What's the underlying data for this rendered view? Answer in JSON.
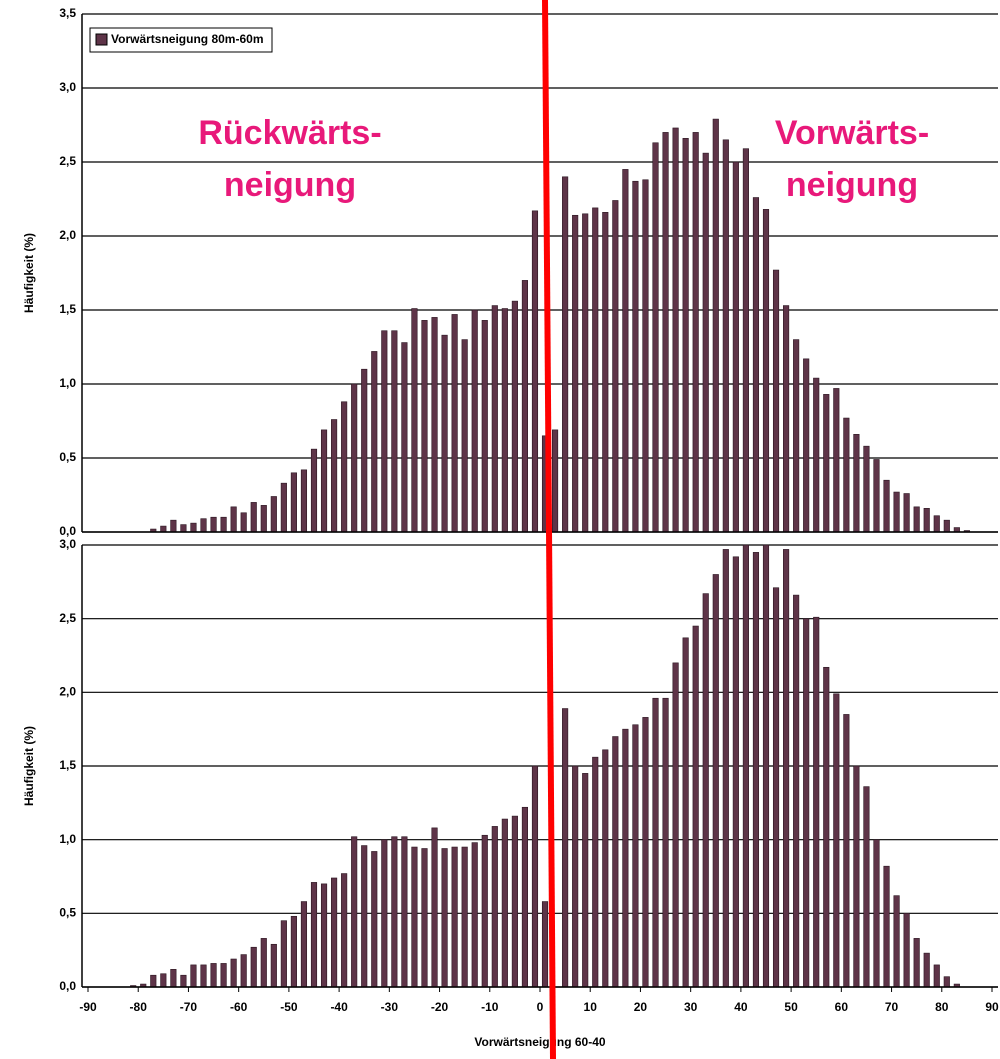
{
  "chart_data": [
    {
      "type": "bar",
      "y_label": "Häufigkeit (%)",
      "annotations": [
        "Rückwärts-",
        "neigung",
        "Vorwärts-",
        "neigung"
      ],
      "legend": "top-left",
      "grid": true,
      "xlim": [
        -90,
        90
      ],
      "ylim": [
        0,
        3.5
      ],
      "yticks": [
        {
          "value": 0,
          "label": "0,0"
        },
        {
          "value": 0.5,
          "label": "0,5"
        },
        {
          "value": 1,
          "label": "1,0"
        },
        {
          "value": 1.5,
          "label": "1,5"
        },
        {
          "value": 2,
          "label": "2,0"
        },
        {
          "value": 2.5,
          "label": "2,5"
        },
        {
          "value": 3,
          "label": "3,0"
        },
        {
          "value": 3.5,
          "label": "3,5"
        }
      ],
      "x": [
        -77,
        -75,
        -73,
        -71,
        -69,
        -67,
        -65,
        -63,
        -61,
        -59,
        -57,
        -55,
        -53,
        -51,
        -49,
        -47,
        -45,
        -43,
        -41,
        -39,
        -37,
        -35,
        -33,
        -31,
        -29,
        -27,
        -25,
        -23,
        -21,
        -19,
        -17,
        -15,
        -13,
        -11,
        -9,
        -7,
        -5,
        -3,
        -1,
        1,
        3,
        5,
        7,
        9,
        11,
        13,
        15,
        17,
        19,
        21,
        23,
        25,
        27,
        29,
        31,
        33,
        35,
        37,
        39,
        41,
        43,
        45,
        47,
        49,
        51,
        53,
        55,
        57,
        59,
        61,
        63,
        65,
        67,
        69,
        71,
        73,
        75,
        77,
        79,
        81,
        83,
        85
      ],
      "series": [
        {
          "name": "Vorwärtsneigung 80m-60m",
          "color": "#5e3448",
          "values": [
            0.02,
            0.04,
            0.08,
            0.05,
            0.06,
            0.09,
            0.1,
            0.1,
            0.17,
            0.13,
            0.2,
            0.18,
            0.24,
            0.33,
            0.4,
            0.42,
            0.56,
            0.69,
            0.76,
            0.88,
            1.0,
            1.1,
            1.22,
            1.36,
            1.36,
            1.28,
            1.51,
            1.43,
            1.45,
            1.33,
            1.47,
            1.3,
            1.5,
            1.43,
            1.53,
            1.51,
            1.56,
            1.7,
            2.17,
            0.65,
            0.69,
            2.4,
            2.14,
            2.15,
            2.19,
            2.16,
            2.24,
            2.45,
            2.37,
            2.38,
            2.63,
            2.7,
            2.73,
            2.66,
            2.7,
            2.56,
            2.79,
            2.65,
            2.5,
            2.59,
            2.26,
            2.18,
            1.77,
            1.53,
            1.3,
            1.17,
            1.04,
            0.93,
            0.97,
            0.77,
            0.66,
            0.58,
            0.49,
            0.35,
            0.27,
            0.26,
            0.17,
            0.16,
            0.11,
            0.08,
            0.03,
            0.01
          ]
        }
      ]
    },
    {
      "type": "bar",
      "y_label": "Häufigkeit (%)",
      "x_label": "Vorwärtsneigung 60-40",
      "grid": true,
      "xlim": [
        -90,
        90
      ],
      "ylim": [
        0,
        3
      ],
      "yticks": [
        {
          "value": 0,
          "label": "0,0"
        },
        {
          "value": 0.5,
          "label": "0,5"
        },
        {
          "value": 1,
          "label": "1,0"
        },
        {
          "value": 1.5,
          "label": "1,5"
        },
        {
          "value": 2,
          "label": "2,0"
        },
        {
          "value": 2.5,
          "label": "2,5"
        },
        {
          "value": 3,
          "label": "3,0"
        }
      ],
      "xticks": [
        -90,
        -80,
        -70,
        -60,
        -50,
        -40,
        -30,
        -20,
        -10,
        0,
        10,
        20,
        30,
        40,
        50,
        60,
        70,
        80,
        90
      ],
      "x": [
        -81,
        -79,
        -77,
        -75,
        -73,
        -71,
        -69,
        -67,
        -65,
        -63,
        -61,
        -59,
        -57,
        -55,
        -53,
        -51,
        -49,
        -47,
        -45,
        -43,
        -41,
        -39,
        -37,
        -35,
        -33,
        -31,
        -29,
        -27,
        -25,
        -23,
        -21,
        -19,
        -17,
        -15,
        -13,
        -11,
        -9,
        -7,
        -5,
        -3,
        -1,
        1,
        3,
        5,
        7,
        9,
        11,
        13,
        15,
        17,
        19,
        21,
        23,
        25,
        27,
        29,
        31,
        33,
        35,
        37,
        39,
        41,
        43,
        45,
        47,
        49,
        51,
        53,
        55,
        57,
        59,
        61,
        63,
        65,
        67,
        69,
        71,
        73,
        75,
        77,
        79,
        81,
        83
      ],
      "color": "#5e3448",
      "values": [
        0.01,
        0.02,
        0.08,
        0.09,
        0.12,
        0.08,
        0.15,
        0.15,
        0.16,
        0.16,
        0.19,
        0.22,
        0.27,
        0.33,
        0.29,
        0.45,
        0.48,
        0.58,
        0.71,
        0.7,
        0.74,
        0.77,
        1.02,
        0.96,
        0.92,
        1.0,
        1.02,
        1.02,
        0.95,
        0.94,
        1.08,
        0.94,
        0.95,
        0.95,
        0.98,
        1.03,
        1.09,
        1.14,
        1.16,
        1.22,
        1.5,
        0.58,
        0,
        1.89,
        1.5,
        1.45,
        1.56,
        1.61,
        1.7,
        1.75,
        1.78,
        1.83,
        1.96,
        1.96,
        2.2,
        2.37,
        2.45,
        2.67,
        2.8,
        2.97,
        2.92,
        3.0,
        2.95,
        3.0,
        2.71,
        2.97,
        2.66,
        2.5,
        2.51,
        2.17,
        1.99,
        1.85,
        1.5,
        1.36,
        1.0,
        0.82,
        0.62,
        0.5,
        0.33,
        0.23,
        0.15,
        0.07,
        0.02
      ]
    }
  ]
}
